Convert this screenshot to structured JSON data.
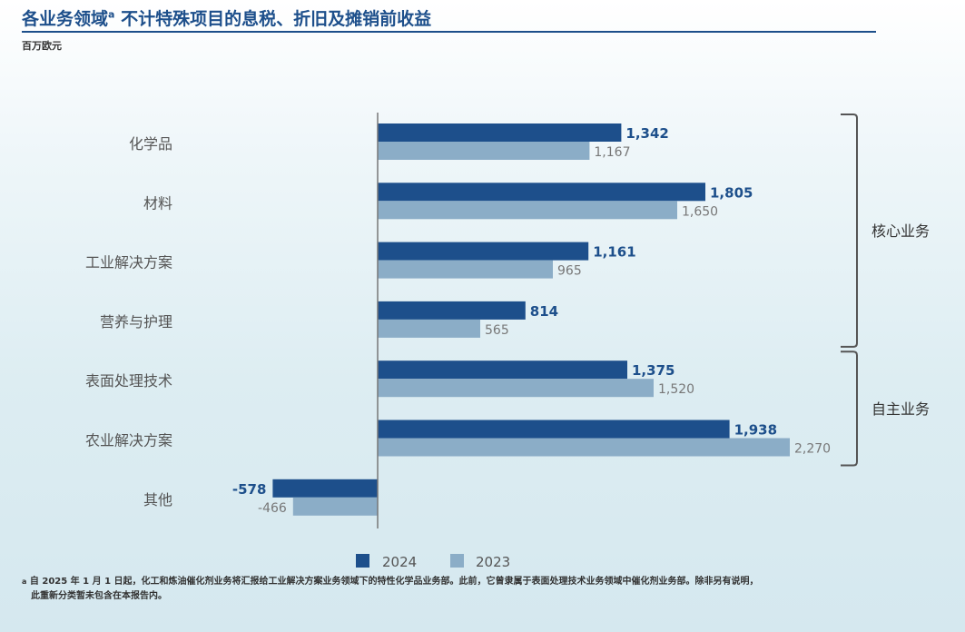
{
  "title": {
    "main": "各业务领域",
    "sup": "a",
    "rest": " 不计特殊项目的息税、折旧及摊销前收益"
  },
  "unit_label": "百万欧元",
  "colors": {
    "series_2024": "#1d4f8b",
    "series_2023": "#8badc7",
    "accent": "#1d4f8b"
  },
  "chart_data": {
    "type": "bar",
    "orientation": "horizontal",
    "categories": [
      "化学品",
      "材料",
      "工业解决方案",
      "营养与护理",
      "表面处理技术",
      "农业解决方案",
      "其他"
    ],
    "series": [
      {
        "name": "2024",
        "values": [
          1342,
          1805,
          1161,
          814,
          1375,
          1938,
          -578
        ],
        "labels": [
          "1,342",
          "1,805",
          "1,161",
          "814",
          "1,375",
          "1,938",
          "-578"
        ]
      },
      {
        "name": "2023",
        "values": [
          1167,
          1650,
          965,
          565,
          1520,
          2270,
          -466
        ],
        "labels": [
          "1,167",
          "1,650",
          "965",
          "565",
          "1,520",
          "2,270",
          "-466"
        ]
      }
    ],
    "groups": [
      {
        "label": "核心业务",
        "categories": [
          "化学品",
          "材料",
          "工业解决方案",
          "营养与护理"
        ]
      },
      {
        "label": "自主业务",
        "categories": [
          "表面处理技术",
          "农业解决方案"
        ]
      }
    ],
    "legend_position": "bottom",
    "grid": false
  },
  "legend": {
    "label_2024": "2024",
    "label_2023": "2023"
  },
  "footnote": {
    "mark": "a",
    "line1": " 自 2025 年 1 月 1 日起，化工和炼油催化剂业务将汇报给工业解决方案业务领域下的特性化学品业务部。此前，它曾隶属于表面处理技术业务领域中催化剂业务部。除非另有说明，",
    "line2": "此重新分类暂未包含在本报告内。"
  }
}
